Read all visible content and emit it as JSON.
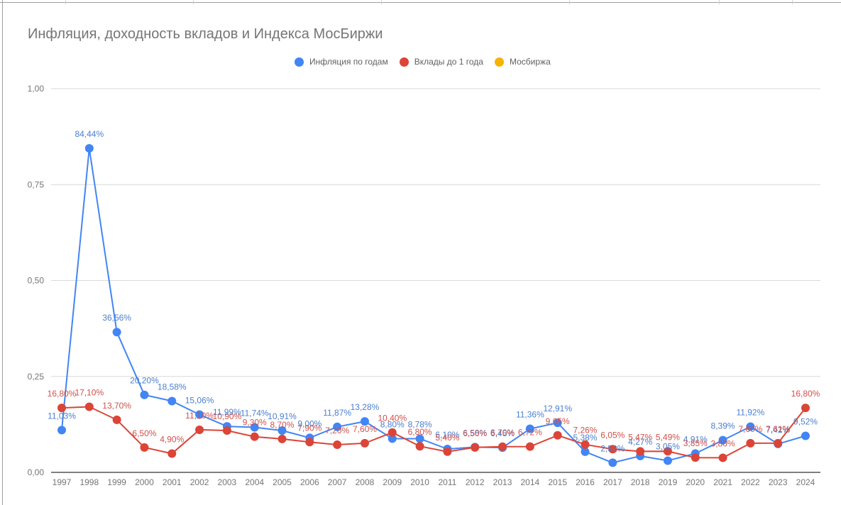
{
  "chart_data": {
    "type": "line",
    "title": "Инфляция, доходность вкладов и Индекса МосБиржи",
    "xlabel": "",
    "ylabel": "",
    "ylim": [
      0,
      1
    ],
    "yticks": [
      "0,00",
      "0,25",
      "0,50",
      "0,75",
      "1,00"
    ],
    "ytick_values": [
      0,
      0.25,
      0.5,
      0.75,
      1.0
    ],
    "grid": true,
    "legend_position": "top",
    "categories": [
      "1997",
      "1998",
      "1999",
      "2000",
      "2001",
      "2002",
      "2003",
      "2004",
      "2005",
      "2006",
      "2007",
      "2008",
      "2009",
      "2010",
      "2011",
      "2012",
      "2013",
      "2014",
      "2015",
      "2016",
      "2017",
      "2018",
      "2019",
      "2020",
      "2021",
      "2022",
      "2023",
      "2024"
    ],
    "series": [
      {
        "name": "Инфляция по годам",
        "color": "#4285f4",
        "label_color": "#4a7fd0",
        "values": [
          0.1103,
          0.8444,
          0.3656,
          0.202,
          0.1858,
          0.1506,
          0.1199,
          0.1174,
          0.1091,
          0.09,
          0.1187,
          0.1328,
          0.088,
          0.0878,
          0.061,
          0.0658,
          0.0645,
          0.1136,
          0.1291,
          0.0538,
          0.0252,
          0.0427,
          0.0305,
          0.0491,
          0.0839,
          0.1192,
          0.0742,
          0.0952
        ],
        "labels": [
          "11,03%",
          "84,44%",
          "36,56%",
          "20,20%",
          "18,58%",
          "15,06%",
          "11,99%",
          "11,74%",
          "10,91%",
          "9,00%",
          "11,87%",
          "13,28%",
          "8,80%",
          "8,78%",
          "6,10%",
          "6,58%",
          "6,45%",
          "11,36%",
          "12,91%",
          "5,38%",
          "2,52%",
          "4,27%",
          "3,05%",
          "4,91%",
          "8,39%",
          "11,92%",
          "7,42%",
          "9,52%"
        ]
      },
      {
        "name": "Вклады до 1 года",
        "color": "#db4437",
        "label_color": "#d0504a",
        "values": [
          0.168,
          0.171,
          0.137,
          0.065,
          0.049,
          0.111,
          0.109,
          0.093,
          0.087,
          0.079,
          0.072,
          0.076,
          0.104,
          0.068,
          0.054,
          0.065,
          0.067,
          0.0672,
          0.0965,
          0.0726,
          0.0605,
          0.0547,
          0.0549,
          0.0385,
          0.038,
          0.076,
          0.0761,
          0.168
        ],
        "labels": [
          "16,80%",
          "17,10%",
          "13,70%",
          "6,50%",
          "4,90%",
          "11,10%",
          "10,90%",
          "9,30%",
          "8,70%",
          "7,90%",
          "7,20%",
          "7,60%",
          "10,40%",
          "6,80%",
          "5,40%",
          "6,50%",
          "6,70%",
          "6,72%",
          "9,65%",
          "7,26%",
          "6,05%",
          "5,47%",
          "5,49%",
          "3,85%",
          "3,80%",
          "7,60%",
          "7,61%",
          "16,80%"
        ]
      },
      {
        "name": "Мосбиржа",
        "color": "#f4b400",
        "values": []
      }
    ]
  }
}
